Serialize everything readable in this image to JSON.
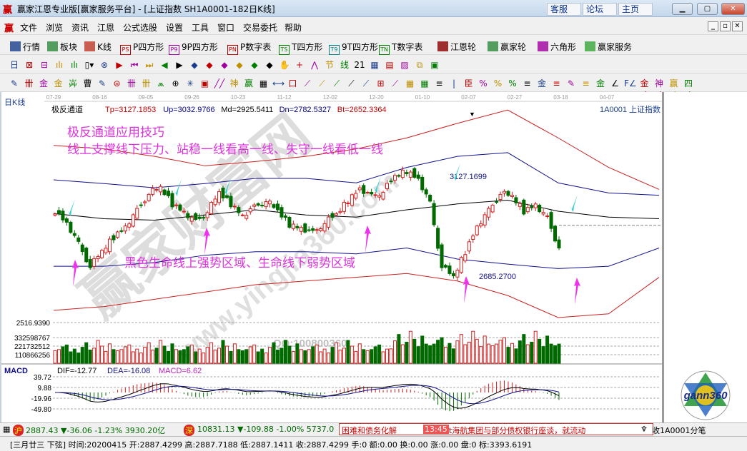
{
  "window": {
    "title": "赢家江恩专业版[赢家服务平台] - [上证指数  SH1A0001-182日K线]",
    "logo": "赢",
    "top_buttons": [
      "客服",
      "论坛",
      "主页"
    ]
  },
  "menu": [
    "文件",
    "浏览",
    "资讯",
    "江恩",
    "公式选股",
    "设置",
    "工具",
    "窗口",
    "交易委托",
    "帮助"
  ],
  "toolbar1": [
    {
      "label": "行情",
      "icon": "grid-table-icon",
      "color": "#1b3e8c"
    },
    {
      "label": "板块",
      "icon": "blocks-icon",
      "color": "#2c8a3a"
    },
    {
      "label": "K线",
      "icon": "candles-icon",
      "color": "#c0392b"
    },
    {
      "label": "P四方形",
      "icon": "PS",
      "color": "#c00000"
    },
    {
      "label": "9P四方形",
      "icon": "P9",
      "color": "#a000a0"
    },
    {
      "label": "P数字表",
      "icon": "PN",
      "color": "#c00000"
    },
    {
      "label": "T四方形",
      "icon": "TS",
      "color": "#008000"
    },
    {
      "label": "9T四方形",
      "icon": "T9",
      "color": "#008080"
    },
    {
      "label": "T数字表",
      "icon": "TN",
      "color": "#008000"
    },
    {
      "label": "江恩轮",
      "icon": "wheel-icon",
      "color": "#8b0000"
    },
    {
      "label": "赢家轮",
      "icon": "big-wheel-icon",
      "color": "#2c8a3a"
    },
    {
      "label": "六角形",
      "icon": "hexagon-icon",
      "color": "#a000a0"
    },
    {
      "label": "赢家服务",
      "icon": "dollar-icon",
      "color": "#3aa53a"
    }
  ],
  "toolbar2_glyphs": [
    "日▾",
    "⊠",
    "⊟",
    "ılı",
    "ılı",
    "▯▾",
    "⊗",
    "▶",
    "⏮",
    "⏭",
    "◀",
    "▶",
    "◆",
    "◆",
    "◆",
    "◆",
    "◆",
    "◆",
    "✋",
    "+",
    "⋀",
    "节",
    "线",
    "21",
    "▦",
    "▤",
    "▨",
    "⧉",
    "▣"
  ],
  "toolbar3_glyphs": [
    "✎",
    "卌",
    "金",
    "金",
    "芔",
    "曹",
    "✎",
    "⊜",
    "卌",
    "卌",
    "⩕",
    "⊕",
    "✳",
    "▣",
    "╱╱",
    "神",
    "赢",
    "▦",
    "⟷",
    "口",
    "⟋",
    "⟋",
    "⟋",
    "⟋",
    "⟋",
    "⊞",
    "⟋",
    "▦",
    "▦",
    "≡",
    "|",
    "臣",
    "%",
    "%",
    "%",
    "≡",
    "金",
    "≡",
    "✎",
    "≡",
    "金",
    "∠",
    "F∠",
    "金∠",
    "神∠",
    "赢∠",
    "四∠"
  ],
  "chart": {
    "period_label": "日K线",
    "date_ticks": [
      "07-29",
      "08-16",
      "09-05",
      "09-26",
      "10-23",
      "11-12",
      "12-02",
      "12-20",
      "01-10",
      "02-07",
      "02-27",
      "03-18",
      "04-07"
    ],
    "indicator_name": "极反通道",
    "params": [
      {
        "text": "Tp=3127.1853",
        "color": "#c00000"
      },
      {
        "text": "Up=3032.9766",
        "color": "#00008b"
      },
      {
        "text": "Md=2925.5411",
        "color": "#000000"
      },
      {
        "text": "Dn=2782.5327",
        "color": "#00008b"
      },
      {
        "text": "Bt=2652.3364",
        "color": "#c00000"
      }
    ],
    "symbol": "1A0001  上证指数",
    "annotations": {
      "title": "极反通道应用技巧",
      "line1": "线上支撑线下压力、站稳一线看高一线、失守一线看低一线",
      "line2": "黑色生命线上强势区域、生命线下弱势区域",
      "high_label": "3127.1699",
      "low_label": "2685.2700"
    },
    "watermark": {
      "text1": "赢家财富网",
      "text2": "www.yingjia360.com",
      "qq": "QQ:100800360"
    },
    "y_range": [
      2510,
      3424
    ],
    "close_keypoints": [
      2964,
      2917,
      2823,
      2729,
      2791,
      2854,
      2901,
      2964,
      3042,
      3064,
      2995,
      2964,
      2917,
      2964,
      3042,
      2995,
      2948,
      2979,
      3011,
      2964,
      2907,
      2895,
      2870,
      2917,
      2948,
      3011,
      3064,
      3026,
      3051,
      3111,
      3136,
      3104,
      2995,
      2729,
      2682,
      2791,
      2901,
      2964,
      3042,
      3026,
      2964,
      2995,
      2932,
      2807
    ],
    "bands": {
      "top_red": [
        3245,
        3230,
        3198,
        3158,
        3176,
        3198,
        3230,
        3277,
        3339,
        3396,
        3277,
        3151,
        3057
      ],
      "upper_blue": [
        3098,
        3082,
        3064,
        3082,
        3104,
        3104,
        3085,
        3151,
        3198,
        3214,
        3085,
        3042,
        3032
      ],
      "mid_black": [
        2954,
        2932,
        2926,
        2948,
        2970,
        2948,
        2939,
        2970,
        2995,
        3011,
        2964,
        2939,
        2932
      ],
      "lower_blue": [
        2729,
        2729,
        2745,
        2776,
        2791,
        2791,
        2782,
        2807,
        2760,
        2738,
        2719,
        2729,
        2807
      ],
      "bottom_red": [
        2541,
        2557,
        2588,
        2619,
        2650,
        2666,
        2682,
        2698,
        2666,
        2604,
        2510,
        2526,
        2682
      ]
    },
    "colors": {
      "up": "#d02020",
      "down": "#006a00",
      "arrow_cyan": "#33cccc",
      "arrow_magenta": "#ee33ee",
      "text_magenta": "#dd33dd"
    }
  },
  "volume": {
    "axis_labels": [
      "2516.9390",
      "332598767",
      "221732512",
      "110866256"
    ],
    "pattern": [
      0.55,
      0.6,
      0.72,
      0.8,
      0.5,
      0.62,
      0.45,
      0.7,
      0.9,
      0.58,
      0.66,
      1.0,
      0.75,
      0.52,
      0.85,
      0.6
    ]
  },
  "macd": {
    "name": "MACD",
    "dif": "DIF=-12.77",
    "dea": "DEA=-16.08",
    "macd": "MACD=6.62",
    "axis_labels": [
      "39.72",
      "9.88",
      "-19.96",
      "-49.80"
    ]
  },
  "status": {
    "sh_icon": "沪",
    "sh": "2887.43 ▼-36.06 -1.23% 3930.20亿",
    "sz_icon": "深",
    "sz": "10831.13 ▼-109.88 -1.00% 5737.0",
    "news1": "困难和债务化解",
    "news_time": "13:45",
    "news2": "t海航集团与部分债权银行座谈，就流动",
    "right": "收1A0001分笔"
  },
  "bottom": {
    "text": "[三月廿三  下弦] 时间:20200415 开:2887.4299 高:2887.7188 低:2887.1411 收:2887.4299 手:0 额:0.00 换:0.00 涨:0.00 盘:0 标:3393.6191"
  },
  "logo_right": "gann360"
}
